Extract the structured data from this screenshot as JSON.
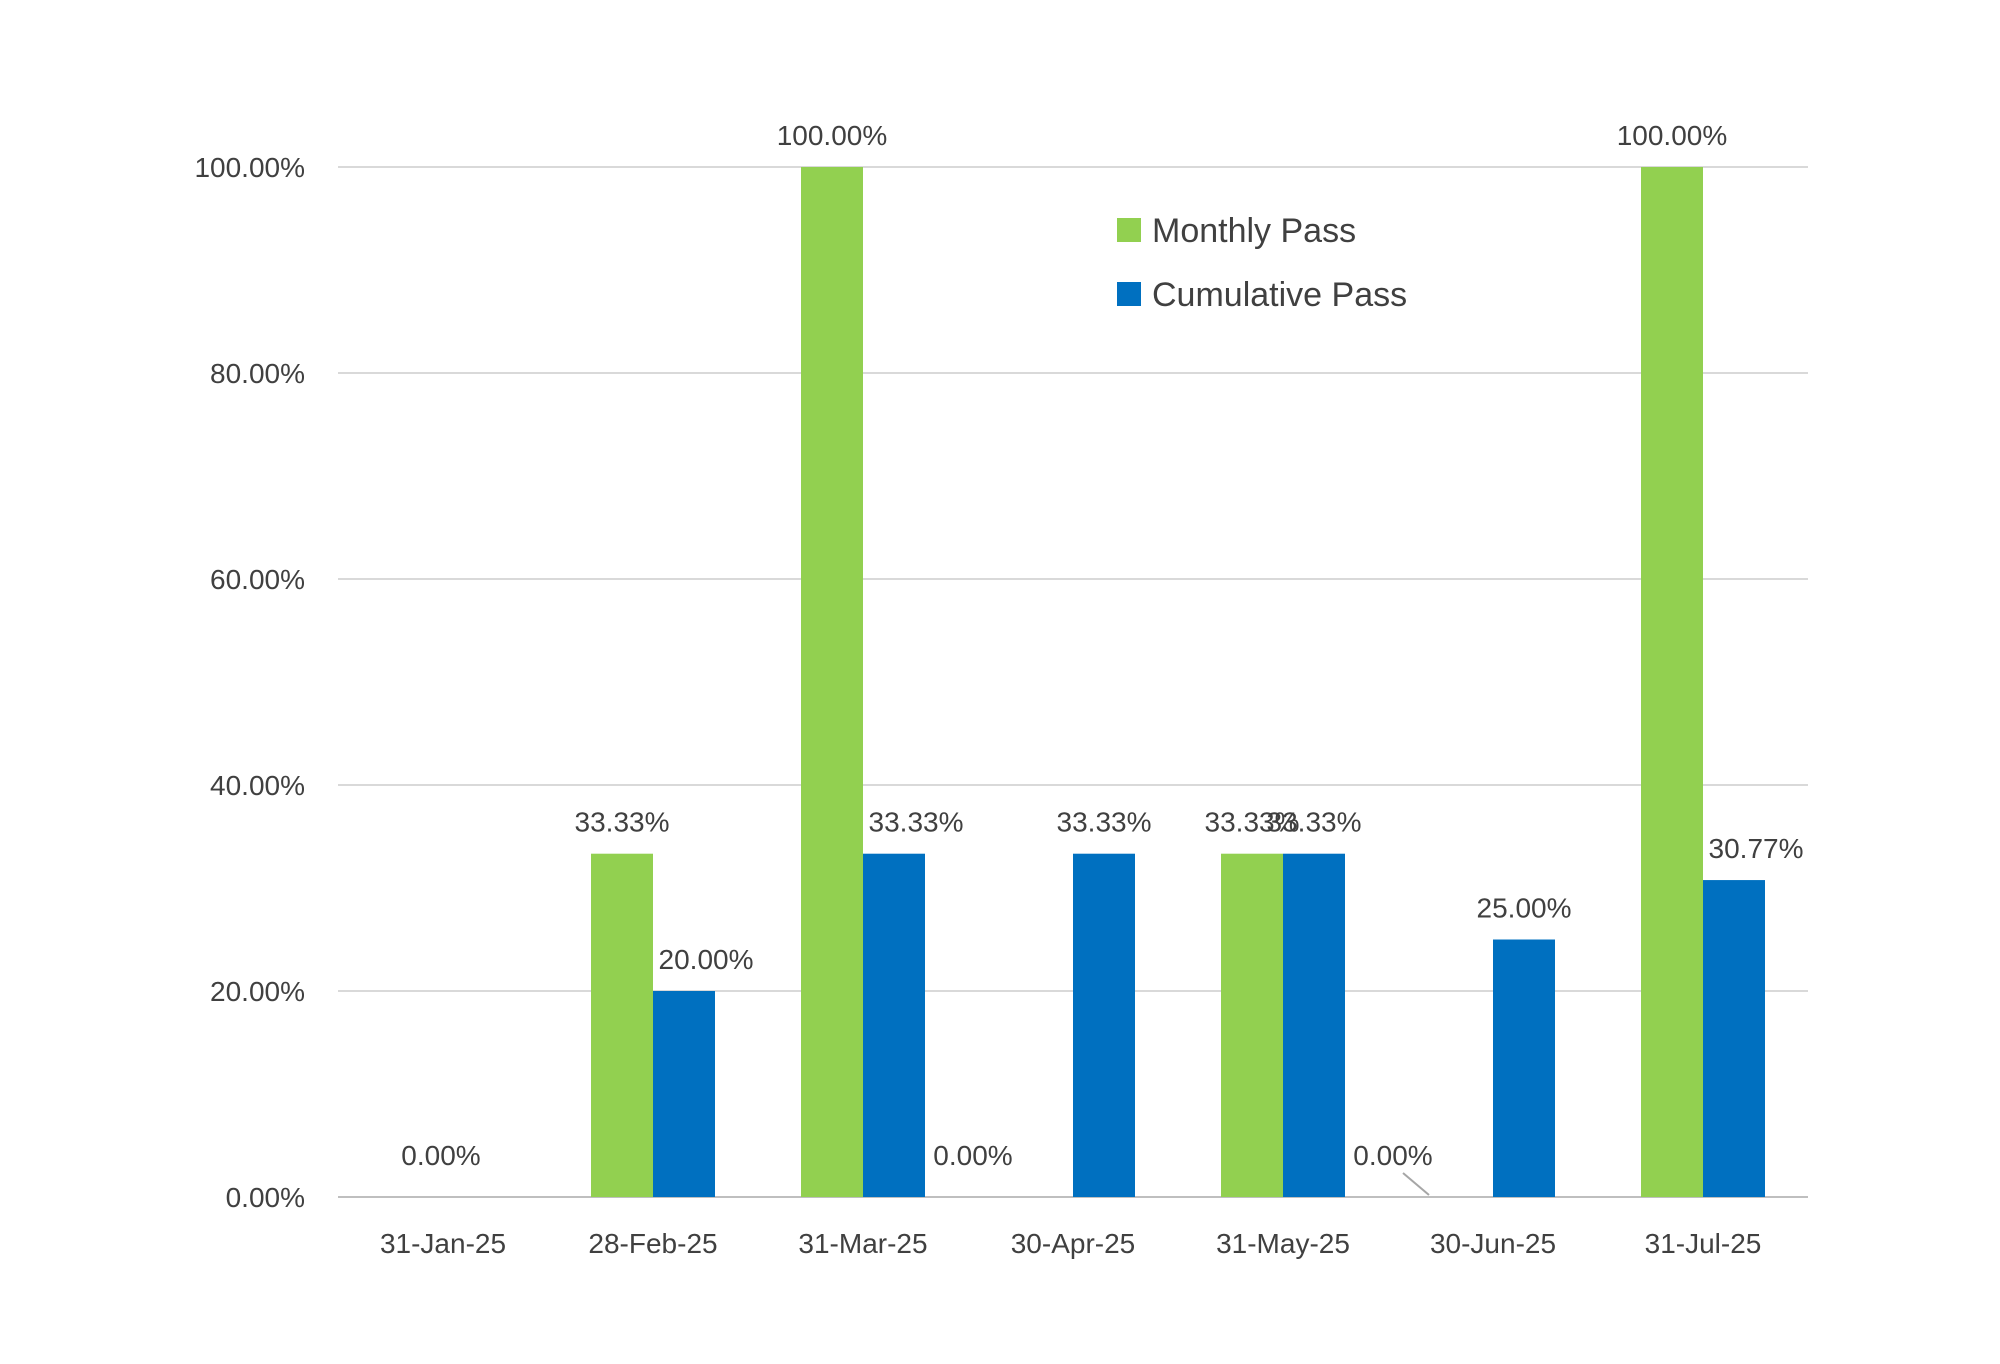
{
  "chart_data": {
    "type": "bar",
    "categories": [
      "31-Jan-25",
      "28-Feb-25",
      "31-Mar-25",
      "30-Apr-25",
      "31-May-25",
      "30-Jun-25",
      "31-Jul-25"
    ],
    "series": [
      {
        "name": "Monthly Pass",
        "color": "#92d050",
        "values": [
          0,
          33.33,
          100,
          0,
          33.33,
          0,
          100
        ],
        "labels": [
          "0.00%",
          "33.33%",
          "100.00%",
          "0.00%",
          "33.33%",
          "0.00%",
          "100.00%"
        ]
      },
      {
        "name": "Cumulative Pass",
        "color": "#0070c0",
        "values": [
          null,
          20,
          33.33,
          33.33,
          33.33,
          25,
          30.77
        ],
        "labels": [
          "",
          "20.00%",
          "33.33%",
          "33.33%",
          "33.33%",
          "25.00%",
          "30.77%"
        ]
      }
    ],
    "yticks": [
      "0.00%",
      "20.00%",
      "40.00%",
      "60.00%",
      "80.00%",
      "100.00%"
    ],
    "ylim": [
      0,
      100
    ],
    "grid": true,
    "legend": "top-center"
  }
}
